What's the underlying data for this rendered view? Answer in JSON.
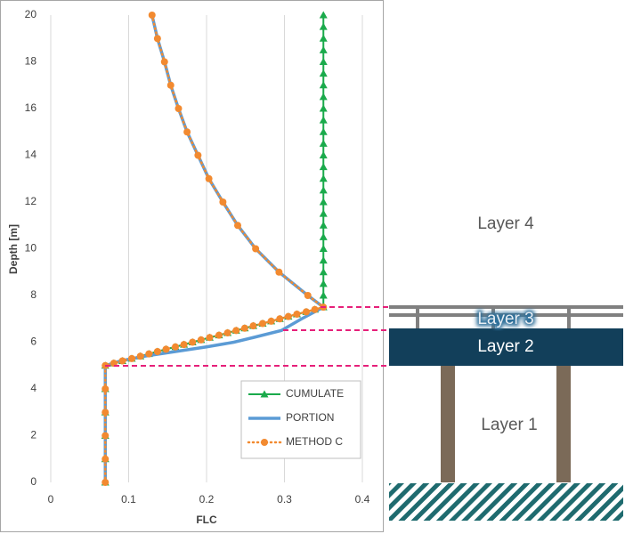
{
  "chart_data": {
    "type": "line",
    "xlabel": "FLC",
    "ylabel": "Depth [m]",
    "xlim": [
      0,
      0.4
    ],
    "xticks": [
      0,
      0.1,
      0.2,
      0.3,
      0.4
    ],
    "ylim": [
      0,
      20
    ],
    "yticks": [
      0,
      2,
      4,
      6,
      8,
      10,
      12,
      14,
      16,
      18,
      20
    ],
    "grid": true,
    "legend": "lower right",
    "series": [
      {
        "name": "CUMULATE",
        "color": "#1aaa4b",
        "line": "solid",
        "marker": "triangle",
        "x": [
          0.35,
          0.35,
          0.35,
          0.35,
          0.35,
          0.35,
          0.35,
          0.35,
          0.35,
          0.35,
          0.35,
          0.35,
          0.35,
          0.35,
          0.35,
          0.35,
          0.35,
          0.35,
          0.35,
          0.35,
          0.35,
          0.35,
          0.35,
          0.35,
          0.35,
          0.35,
          0.339,
          0.328,
          0.316,
          0.305,
          0.294,
          0.283,
          0.272,
          0.26,
          0.249,
          0.238,
          0.227,
          0.216,
          0.204,
          0.193,
          0.182,
          0.171,
          0.16,
          0.148,
          0.137,
          0.126,
          0.115,
          0.104,
          0.092,
          0.081,
          0.07,
          0.07,
          0.07,
          0.07,
          0.07,
          0.07
        ],
        "y": [
          20,
          19.5,
          19,
          18.5,
          18,
          17.5,
          17,
          16.5,
          16,
          15.5,
          15,
          14.5,
          14,
          13.5,
          13,
          12.5,
          12,
          11.5,
          11,
          10.5,
          10,
          9.5,
          9,
          8.5,
          8,
          7.5,
          7.4,
          7.3,
          7.2,
          7.1,
          7,
          6.9,
          6.8,
          6.7,
          6.6,
          6.5,
          6.4,
          6.3,
          6.2,
          6.1,
          6,
          5.9,
          5.8,
          5.7,
          5.6,
          5.5,
          5.4,
          5.3,
          5.2,
          5.1,
          5,
          4,
          3,
          2,
          1,
          0
        ]
      },
      {
        "name": "PORTION",
        "color": "#5b9bd5",
        "line": "thick",
        "marker": "none",
        "x": [
          0.13,
          0.137,
          0.146,
          0.154,
          0.164,
          0.175,
          0.189,
          0.203,
          0.221,
          0.24,
          0.263,
          0.293,
          0.33,
          0.35,
          0.322,
          0.296,
          0.26,
          0.235,
          0.2,
          0.16,
          0.12,
          0.09,
          0.07,
          0.07
        ],
        "y": [
          20,
          19,
          18,
          17,
          16,
          15,
          14,
          13,
          12,
          11,
          10,
          9,
          8,
          7.5,
          7,
          6.5,
          6.2,
          6,
          5.8,
          5.6,
          5.4,
          5.2,
          5,
          0
        ]
      },
      {
        "name": "METHOD C",
        "color": "#f28a30",
        "line": "dotted",
        "marker": "circle",
        "x": [
          0.13,
          0.137,
          0.146,
          0.154,
          0.164,
          0.175,
          0.189,
          0.203,
          0.221,
          0.24,
          0.263,
          0.293,
          0.33,
          0.35,
          0.339,
          0.328,
          0.316,
          0.305,
          0.294,
          0.283,
          0.272,
          0.26,
          0.249,
          0.238,
          0.227,
          0.216,
          0.204,
          0.193,
          0.182,
          0.171,
          0.16,
          0.148,
          0.137,
          0.126,
          0.115,
          0.104,
          0.092,
          0.081,
          0.07,
          0.07,
          0.07,
          0.07,
          0.07,
          0.07
        ],
        "y": [
          20,
          19,
          18,
          17,
          16,
          15,
          14,
          13,
          12,
          11,
          10,
          9,
          8,
          7.5,
          7.4,
          7.3,
          7.2,
          7.1,
          7,
          6.9,
          6.8,
          6.7,
          6.6,
          6.5,
          6.4,
          6.3,
          6.2,
          6.1,
          6,
          5.9,
          5.8,
          5.7,
          5.6,
          5.5,
          5.4,
          5.3,
          5.2,
          5.1,
          5,
          4,
          3,
          2,
          1,
          0
        ]
      }
    ]
  },
  "diagram": {
    "labels": [
      "Layer 4",
      "Layer 3",
      "Layer 2",
      "Layer 1"
    ]
  }
}
